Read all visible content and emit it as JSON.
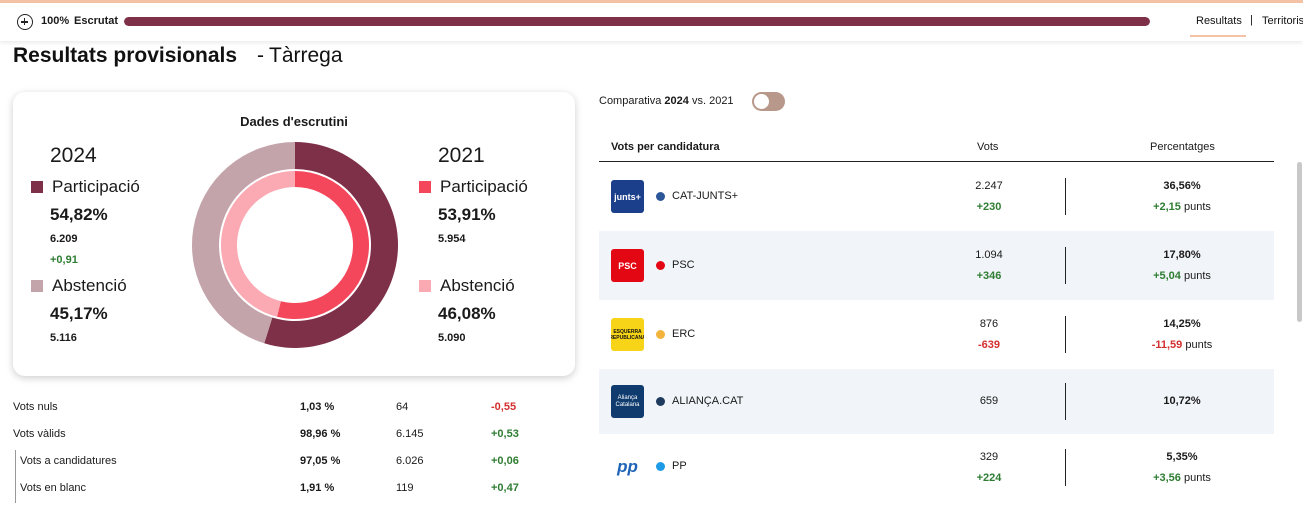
{
  "topbar": {
    "scrutiny_pct": "100%",
    "scrutiny_label": "Escrutat",
    "scrutiny_progress": 1.0,
    "nav_results": "Resultats",
    "nav_separator": "|",
    "nav_territories": "Territoris"
  },
  "page": {
    "title": "Resultats provisionals",
    "dash": "-",
    "place": "Tàrrega"
  },
  "scrutiny": {
    "title": "Dades d'escrutini",
    "y2024": {
      "year": "2024",
      "participation_label": "Participació",
      "participation_pct": "54,82%",
      "participation_votes": "6.209",
      "participation_diff": "+0,91",
      "abstention_label": "Abstenció",
      "abstention_pct": "45,17%",
      "abstention_votes": "5.116"
    },
    "y2021": {
      "year": "2021",
      "participation_label": "Participació",
      "participation_pct": "53,91%",
      "participation_votes": "5.954",
      "abstention_label": "Abstenció",
      "abstention_pct": "46,08%",
      "abstention_votes": "5.090"
    },
    "colors": {
      "participation_2024": "#7d3048",
      "abstention_2024": "#c4a4ab",
      "participation_2021": "#f5475c",
      "abstention_2021": "#fbaab4"
    },
    "ring_values": {
      "outer_participation": 54.82,
      "outer_abstention": 45.17,
      "inner_participation": 53.91,
      "inner_abstention": 46.08
    }
  },
  "stats": [
    {
      "label": "Vots nuls",
      "pct": "1,03 %",
      "votes": "64",
      "diff": "-0,55",
      "diff_color": "red"
    },
    {
      "label": "Vots vàlids",
      "pct": "98,96 %",
      "votes": "6.145",
      "diff": "+0,53",
      "diff_color": "green"
    },
    {
      "label": "Vots a candidatures",
      "pct": "97,05 %",
      "votes": "6.026",
      "diff": "+0,06",
      "diff_color": "green"
    },
    {
      "label": "Vots en blanc",
      "pct": "1,91 %",
      "votes": "119",
      "diff": "+0,47",
      "diff_color": "green"
    }
  ],
  "comparison": {
    "label_prefix": "Comparativa",
    "year_bold": "2024",
    "label_suffix": "vs. 2021",
    "toggle_on": false
  },
  "table": {
    "col_candidate": "Vots per candidatura",
    "col_votes": "Vots",
    "col_pct": "Percentatges",
    "points_label": "punts",
    "rows": [
      {
        "name": "CAT-JUNTS+",
        "logo_text": "junts+",
        "logo_bg": "#1b3f8b",
        "dot": "#2b5798",
        "votes": "2.247",
        "votes_diff": "+230",
        "votes_diff_color": "green",
        "pct": "36,56%",
        "pct_diff": "+2,15",
        "pct_diff_color": "green",
        "shaded": false
      },
      {
        "name": "PSC",
        "logo_text": "PSC",
        "logo_bg": "#e30613",
        "dot": "#e30613",
        "votes": "1.094",
        "votes_diff": "+346",
        "votes_diff_color": "green",
        "pct": "17,80%",
        "pct_diff": "+5,04",
        "pct_diff_color": "green",
        "shaded": true
      },
      {
        "name": "ERC",
        "logo_text": "ESQUERRA REPUBLICANA",
        "logo_bg": "#f7d417",
        "dot": "#f2b43c",
        "votes": "876",
        "votes_diff": "-639",
        "votes_diff_color": "red",
        "pct": "14,25%",
        "pct_diff": "-11,59",
        "pct_diff_color": "red",
        "shaded": false
      },
      {
        "name": "ALIANÇA.CAT",
        "logo_text": "Aliança Catalana",
        "logo_bg": "#0f3b6e",
        "dot": "#1f3a5f",
        "votes": "659",
        "votes_diff": "",
        "votes_diff_color": "green",
        "pct": "10,72%",
        "pct_diff": "",
        "pct_diff_color": "green",
        "shaded": true
      },
      {
        "name": "PP",
        "logo_text": "pp",
        "logo_bg": "#ffffff",
        "dot": "#1e9be6",
        "votes": "329",
        "votes_diff": "+224",
        "votes_diff_color": "green",
        "pct": "5,35%",
        "pct_diff": "+3,56",
        "pct_diff_color": "green",
        "shaded": false
      }
    ]
  }
}
